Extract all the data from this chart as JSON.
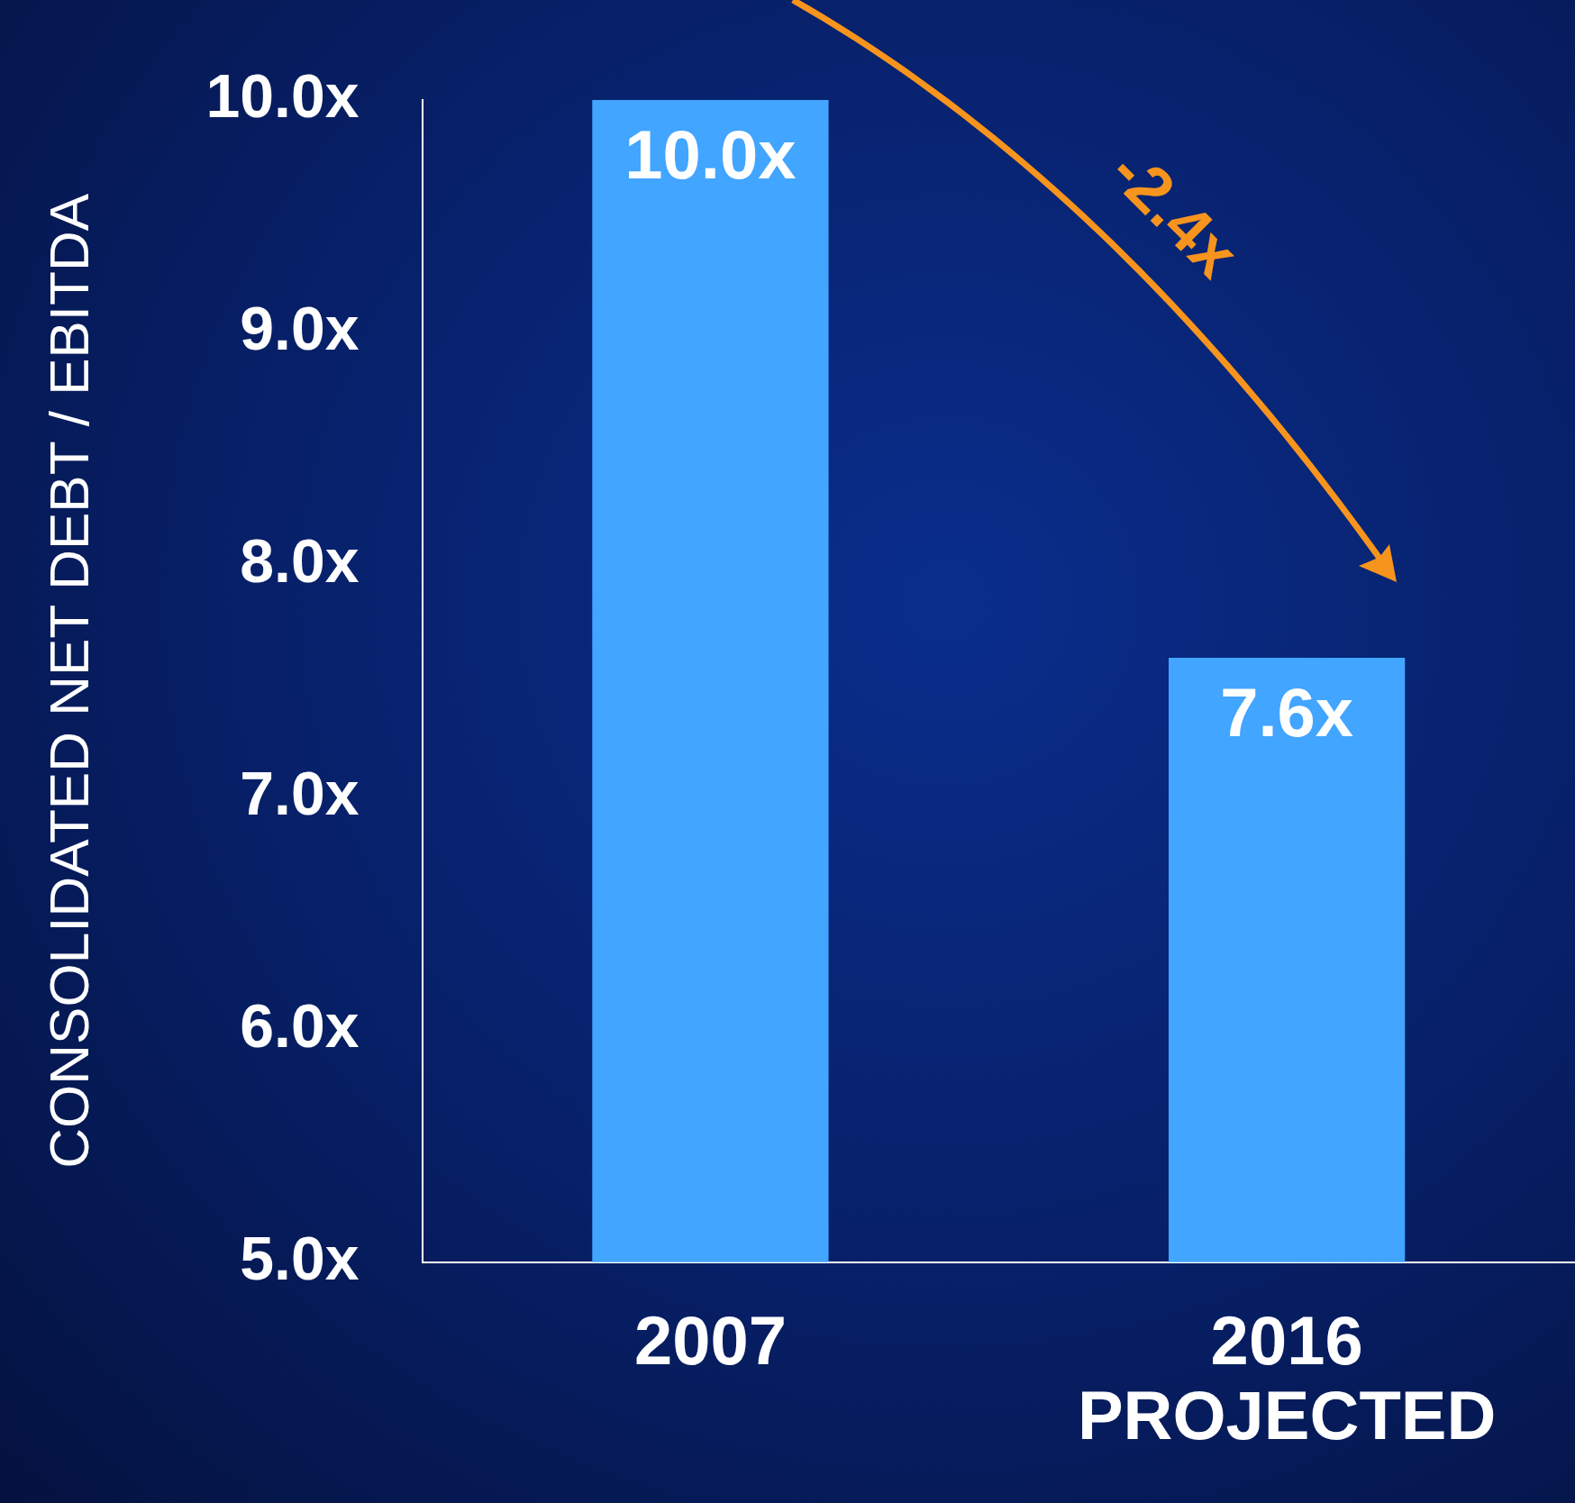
{
  "chart_data": {
    "type": "bar",
    "ylabel": "CONSOLIDATED NET DEBT / EBITDA",
    "categories": [
      "2007",
      "2016\nPROJECTED"
    ],
    "values": [
      10.0,
      7.6
    ],
    "color": "#42a5ff",
    "value_labels": [
      "10.0x",
      "7.6x"
    ],
    "ylim": [
      5,
      10
    ],
    "yticks": [
      {
        "value": 5,
        "label": "5.0x"
      },
      {
        "value": 6,
        "label": "6.0x"
      },
      {
        "value": 7,
        "label": "7.0x"
      },
      {
        "value": 8,
        "label": "8.0x"
      },
      {
        "value": 9,
        "label": "9.0x"
      },
      {
        "value": 10,
        "label": "10.0x"
      }
    ],
    "annotations": [
      "-2.4x"
    ],
    "grid": false,
    "legend": false
  }
}
